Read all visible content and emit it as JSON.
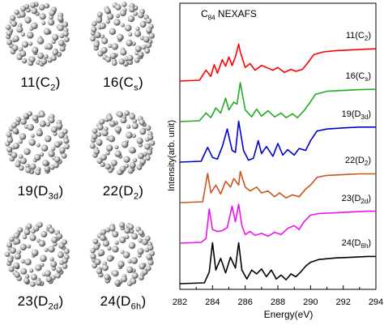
{
  "molecules": [
    {
      "id": "mol-11",
      "num": "11(",
      "sym": "C",
      "sub": "2",
      "close": ")"
    },
    {
      "id": "mol-16",
      "num": "16(",
      "sym": "C",
      "sub": "s",
      "close": ")"
    },
    {
      "id": "mol-19",
      "num": "19(",
      "sym": "D",
      "sub": "3d",
      "close": ")"
    },
    {
      "id": "mol-22",
      "num": "22(",
      "sym": "D",
      "sub": "2",
      "close": ")"
    },
    {
      "id": "mol-23",
      "num": "23(",
      "sym": "D",
      "sub": "2d",
      "close": ")"
    },
    {
      "id": "mol-24",
      "num": "24(",
      "sym": "D",
      "sub": "6h",
      "close": ")"
    }
  ],
  "chart_data": {
    "type": "line",
    "title_main": "C",
    "title_sub": "84",
    "title_rest": " NEXAFS",
    "xlabel": "Energy(eV)",
    "ylabel": "Intensity(arb. unit)",
    "xlim": [
      282,
      294
    ],
    "xticks": [
      282,
      284,
      286,
      288,
      290,
      292,
      294
    ],
    "grid": false,
    "legend": "labels placed at right end of each curve",
    "series": [
      {
        "name_main": "11(C",
        "name_sub": "2",
        "name_close": ")",
        "color": "#ff0000",
        "offset": 5,
        "x": [
          282.0,
          283.2,
          283.6,
          283.9,
          284.1,
          284.3,
          284.6,
          284.8,
          285.0,
          285.2,
          285.4,
          285.6,
          285.7,
          286.0,
          286.3,
          286.6,
          287.0,
          287.3,
          287.7,
          288.0,
          288.4,
          288.8,
          289.1,
          289.5,
          289.8,
          290.2,
          290.8,
          291.5,
          292.5,
          293.5,
          294.0
        ],
        "y": [
          0.0,
          0.02,
          0.28,
          0.12,
          0.42,
          0.2,
          0.55,
          0.38,
          0.62,
          0.4,
          0.62,
          0.95,
          0.75,
          0.35,
          0.45,
          0.28,
          0.4,
          0.35,
          0.28,
          0.35,
          0.22,
          0.3,
          0.25,
          0.3,
          0.45,
          0.68,
          0.75,
          0.78,
          0.8,
          0.82,
          0.83
        ]
      },
      {
        "name_main": "16(C",
        "name_sub": "s",
        "name_close": ")",
        "color": "#22aa22",
        "offset": 4,
        "x": [
          282.0,
          283.2,
          283.6,
          283.9,
          284.2,
          284.5,
          284.8,
          285.0,
          285.3,
          285.5,
          285.7,
          286.0,
          286.4,
          286.7,
          287.0,
          287.4,
          287.8,
          288.2,
          288.5,
          288.9,
          289.2,
          289.6,
          289.9,
          290.3,
          291.0,
          292.0,
          293.0,
          294.0
        ],
        "y": [
          0.0,
          0.02,
          0.22,
          0.1,
          0.35,
          0.22,
          0.6,
          0.3,
          0.5,
          0.45,
          1.0,
          0.3,
          0.12,
          0.32,
          0.14,
          0.28,
          0.12,
          0.22,
          0.1,
          0.2,
          0.1,
          0.28,
          0.45,
          0.7,
          0.78,
          0.8,
          0.82,
          0.83
        ]
      },
      {
        "name_main": "19(D",
        "name_sub": "3d",
        "name_close": ")",
        "color": "#0000cc",
        "offset": 3,
        "x": [
          282.0,
          283.3,
          283.7,
          284.0,
          284.3,
          284.6,
          284.9,
          285.2,
          285.4,
          285.6,
          285.9,
          286.2,
          286.5,
          286.8,
          287.0,
          287.3,
          287.7,
          288.0,
          288.3,
          288.6,
          289.0,
          289.3,
          289.7,
          290.0,
          290.4,
          291.0,
          292.0,
          293.0,
          294.0
        ],
        "y": [
          0.0,
          0.02,
          0.38,
          0.12,
          0.08,
          0.4,
          0.85,
          0.3,
          0.25,
          1.05,
          0.3,
          0.05,
          0.1,
          0.55,
          0.22,
          0.4,
          0.15,
          0.48,
          0.18,
          0.32,
          0.18,
          0.35,
          0.3,
          0.55,
          0.8,
          0.85,
          0.88,
          0.9,
          0.9
        ]
      },
      {
        "name_main": "22(D",
        "name_sub": "2",
        "name_close": ")",
        "color": "#c8551e",
        "offset": 2,
        "x": [
          282.0,
          283.4,
          283.7,
          283.9,
          284.2,
          284.5,
          284.8,
          285.1,
          285.3,
          285.6,
          285.7,
          286.0,
          286.3,
          286.7,
          287.0,
          287.4,
          287.8,
          288.1,
          288.5,
          288.9,
          289.3,
          289.7,
          290.0,
          290.4,
          291.0,
          292.0,
          293.0,
          294.0
        ],
        "y": [
          0.0,
          0.02,
          0.75,
          0.25,
          0.45,
          0.22,
          0.55,
          0.4,
          0.62,
          0.45,
          0.8,
          0.4,
          0.3,
          0.4,
          0.25,
          0.3,
          0.15,
          0.25,
          0.12,
          0.2,
          0.15,
          0.35,
          0.45,
          0.65,
          0.7,
          0.72,
          0.74,
          0.74
        ]
      },
      {
        "name_main": "23(D",
        "name_sub": "2d",
        "name_close": ")",
        "color": "#ee11ee",
        "offset": 1,
        "x": [
          282.0,
          283.3,
          283.6,
          283.8,
          284.0,
          284.3,
          284.6,
          284.9,
          285.2,
          285.4,
          285.6,
          285.8,
          286.0,
          286.3,
          286.6,
          287.0,
          287.4,
          287.8,
          288.2,
          288.6,
          289.0,
          289.3,
          289.6,
          290.0,
          290.5,
          291.5,
          292.5,
          293.5,
          294.0
        ],
        "y": [
          0.0,
          0.02,
          0.12,
          0.88,
          0.35,
          0.3,
          0.32,
          0.4,
          0.95,
          0.55,
          1.0,
          0.45,
          0.22,
          0.3,
          0.2,
          0.25,
          0.18,
          0.28,
          0.22,
          0.38,
          0.45,
          0.35,
          0.55,
          0.72,
          0.76,
          0.78,
          0.8,
          0.82,
          0.82
        ]
      },
      {
        "name_main": "24(D",
        "name_sub": "6h",
        "name_close": ")",
        "color": "#000000",
        "offset": 0,
        "x": [
          282.0,
          283.5,
          283.8,
          284.0,
          284.2,
          284.5,
          284.8,
          285.1,
          285.4,
          285.6,
          285.8,
          286.1,
          286.4,
          286.7,
          287.0,
          287.3,
          287.6,
          287.9,
          288.2,
          288.5,
          288.8,
          289.1,
          289.4,
          289.7,
          290.0,
          290.5,
          291.5,
          292.5,
          293.5,
          294.0
        ],
        "y": [
          0.0,
          0.02,
          0.3,
          1.05,
          0.35,
          0.65,
          0.28,
          0.68,
          0.4,
          1.05,
          0.35,
          0.12,
          0.35,
          0.25,
          0.38,
          0.18,
          0.35,
          0.12,
          0.22,
          0.1,
          0.25,
          0.18,
          0.3,
          0.45,
          0.55,
          0.62,
          0.66,
          0.68,
          0.7,
          0.7
        ]
      }
    ]
  }
}
